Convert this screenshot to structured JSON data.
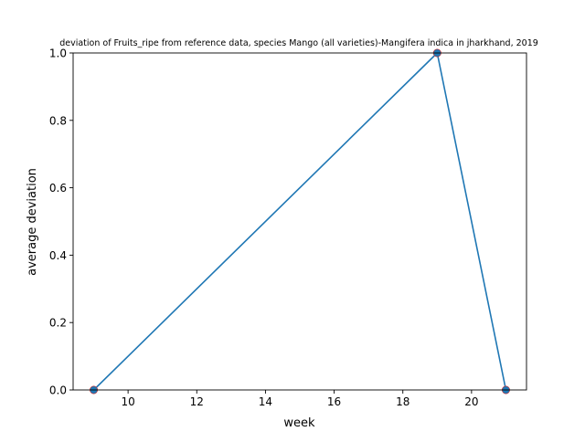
{
  "chart_data": {
    "type": "line",
    "title": "deviation of Fruits_ripe from reference data, species Mango (all varieties)-Mangifera indica in jharkhand, 2019",
    "xlabel": "week",
    "ylabel": "average deviation",
    "xlim": [
      8.4,
      21.6
    ],
    "ylim": [
      0.0,
      1.0
    ],
    "xticks": [
      10,
      12,
      14,
      16,
      18,
      20
    ],
    "yticks": [
      0.0,
      0.2,
      0.4,
      0.6,
      0.8,
      1.0
    ],
    "xtick_labels": [
      "10",
      "12",
      "14",
      "16",
      "18",
      "20"
    ],
    "ytick_labels": [
      "0.0",
      "0.2",
      "0.4",
      "0.6",
      "0.8",
      "1.0"
    ],
    "grid": false,
    "series": [
      {
        "x": [
          9,
          19,
          21
        ],
        "y": [
          0.0,
          1.0,
          0.0
        ],
        "color": "#1f77b4",
        "marker": "circle",
        "marker_edge_color": "#d62728"
      }
    ]
  }
}
